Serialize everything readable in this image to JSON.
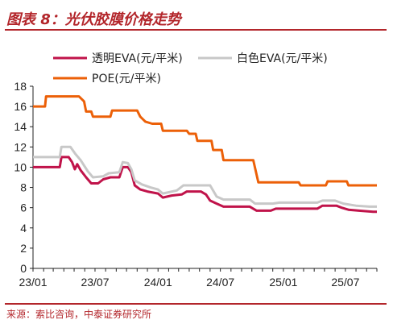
{
  "title": "图表 8：光伏胶膜价格走势",
  "source": "来源：索比咨询，中泰证券研究所",
  "chart_data": {
    "type": "line",
    "ylim": [
      0,
      18
    ],
    "yticks": [
      "0",
      "2",
      "4",
      "6",
      "8",
      "10",
      "12",
      "14",
      "16",
      "18"
    ],
    "xlim": [
      "2023-01",
      "2025-10"
    ],
    "xticks": [
      "23/01",
      "23/07",
      "24/01",
      "24/07",
      "25/01",
      "25/07"
    ],
    "legend_position": "top",
    "series": [
      {
        "name": "透明EVA(元/平米)",
        "color": "#c0134a",
        "points": [
          [
            "2023-01-01",
            10.0
          ],
          [
            "2023-03-20",
            10.0
          ],
          [
            "2023-03-25",
            11.0
          ],
          [
            "2023-04-15",
            11.0
          ],
          [
            "2023-04-25",
            10.5
          ],
          [
            "2023-05-03",
            9.8
          ],
          [
            "2023-05-10",
            10.3
          ],
          [
            "2023-05-20",
            9.7
          ],
          [
            "2023-06-05",
            9.0
          ],
          [
            "2023-06-20",
            8.4
          ],
          [
            "2023-07-10",
            8.4
          ],
          [
            "2023-07-25",
            8.8
          ],
          [
            "2023-08-15",
            9.0
          ],
          [
            "2023-09-10",
            9.0
          ],
          [
            "2023-09-20",
            10.0
          ],
          [
            "2023-10-05",
            10.0
          ],
          [
            "2023-10-15",
            9.5
          ],
          [
            "2023-10-25",
            8.2
          ],
          [
            "2023-11-10",
            7.8
          ],
          [
            "2023-12-01",
            7.6
          ],
          [
            "2024-01-01",
            7.4
          ],
          [
            "2024-01-15",
            7.0
          ],
          [
            "2024-02-10",
            7.2
          ],
          [
            "2024-03-10",
            7.3
          ],
          [
            "2024-03-25",
            7.6
          ],
          [
            "2024-05-05",
            7.6
          ],
          [
            "2024-05-20",
            7.3
          ],
          [
            "2024-06-01",
            6.7
          ],
          [
            "2024-06-20",
            6.4
          ],
          [
            "2024-07-10",
            6.1
          ],
          [
            "2024-09-25",
            6.1
          ],
          [
            "2024-10-15",
            5.7
          ],
          [
            "2024-11-25",
            5.7
          ],
          [
            "2024-12-10",
            5.9
          ],
          [
            "2025-04-10",
            5.9
          ],
          [
            "2025-04-25",
            6.2
          ],
          [
            "2025-06-05",
            6.2
          ],
          [
            "2025-06-20",
            6.0
          ],
          [
            "2025-07-10",
            5.8
          ],
          [
            "2025-08-10",
            5.7
          ],
          [
            "2025-09-20",
            5.6
          ],
          [
            "2025-10-01",
            5.6
          ]
        ]
      },
      {
        "name": "白色EVA(元/平米)",
        "color": "#c8c8c8",
        "points": [
          [
            "2023-01-01",
            11.0
          ],
          [
            "2023-03-20",
            11.0
          ],
          [
            "2023-03-25",
            12.0
          ],
          [
            "2023-04-20",
            12.0
          ],
          [
            "2023-05-05",
            11.3
          ],
          [
            "2023-05-20",
            10.7
          ],
          [
            "2023-06-10",
            9.6
          ],
          [
            "2023-06-25",
            9.0
          ],
          [
            "2023-07-25",
            9.1
          ],
          [
            "2023-08-10",
            9.4
          ],
          [
            "2023-09-10",
            9.5
          ],
          [
            "2023-09-20",
            10.5
          ],
          [
            "2023-10-05",
            10.4
          ],
          [
            "2023-10-15",
            9.8
          ],
          [
            "2023-10-25",
            8.7
          ],
          [
            "2023-11-15",
            8.3
          ],
          [
            "2023-12-10",
            8.0
          ],
          [
            "2024-01-01",
            7.8
          ],
          [
            "2024-01-15",
            7.4
          ],
          [
            "2024-02-25",
            7.7
          ],
          [
            "2024-03-15",
            8.2
          ],
          [
            "2024-06-01",
            8.2
          ],
          [
            "2024-06-20",
            7.1
          ],
          [
            "2024-07-10",
            6.8
          ],
          [
            "2024-09-25",
            6.8
          ],
          [
            "2024-10-10",
            6.4
          ],
          [
            "2024-12-01",
            6.4
          ],
          [
            "2024-12-20",
            6.5
          ],
          [
            "2025-04-10",
            6.5
          ],
          [
            "2025-04-25",
            6.7
          ],
          [
            "2025-06-01",
            6.7
          ],
          [
            "2025-06-25",
            6.4
          ],
          [
            "2025-08-01",
            6.2
          ],
          [
            "2025-09-10",
            6.1
          ],
          [
            "2025-10-01",
            6.1
          ]
        ]
      },
      {
        "name": "POE(元/平米)",
        "color": "#ec6008",
        "points": [
          [
            "2023-01-01",
            16.0
          ],
          [
            "2023-02-05",
            16.0
          ],
          [
            "2023-02-08",
            17.0
          ],
          [
            "2023-05-15",
            17.0
          ],
          [
            "2023-05-30",
            16.5
          ],
          [
            "2023-06-05",
            15.5
          ],
          [
            "2023-06-20",
            15.5
          ],
          [
            "2023-06-25",
            15.0
          ],
          [
            "2023-08-15",
            15.0
          ],
          [
            "2023-08-20",
            15.6
          ],
          [
            "2023-11-01",
            15.6
          ],
          [
            "2023-11-10",
            15.0
          ],
          [
            "2023-11-25",
            14.5
          ],
          [
            "2023-12-15",
            14.3
          ],
          [
            "2024-01-10",
            14.3
          ],
          [
            "2024-01-15",
            13.6
          ],
          [
            "2024-03-25",
            13.6
          ],
          [
            "2024-04-01",
            13.3
          ],
          [
            "2024-04-20",
            13.3
          ],
          [
            "2024-04-25",
            12.6
          ],
          [
            "2024-06-05",
            12.6
          ],
          [
            "2024-06-10",
            11.7
          ],
          [
            "2024-07-05",
            11.7
          ],
          [
            "2024-07-10",
            10.7
          ],
          [
            "2024-10-05",
            10.7
          ],
          [
            "2024-10-20",
            8.5
          ],
          [
            "2025-02-15",
            8.5
          ],
          [
            "2025-02-20",
            8.2
          ],
          [
            "2025-05-05",
            8.2
          ],
          [
            "2025-05-10",
            8.6
          ],
          [
            "2025-07-05",
            8.6
          ],
          [
            "2025-07-10",
            8.2
          ],
          [
            "2025-10-01",
            8.2
          ]
        ]
      }
    ]
  }
}
